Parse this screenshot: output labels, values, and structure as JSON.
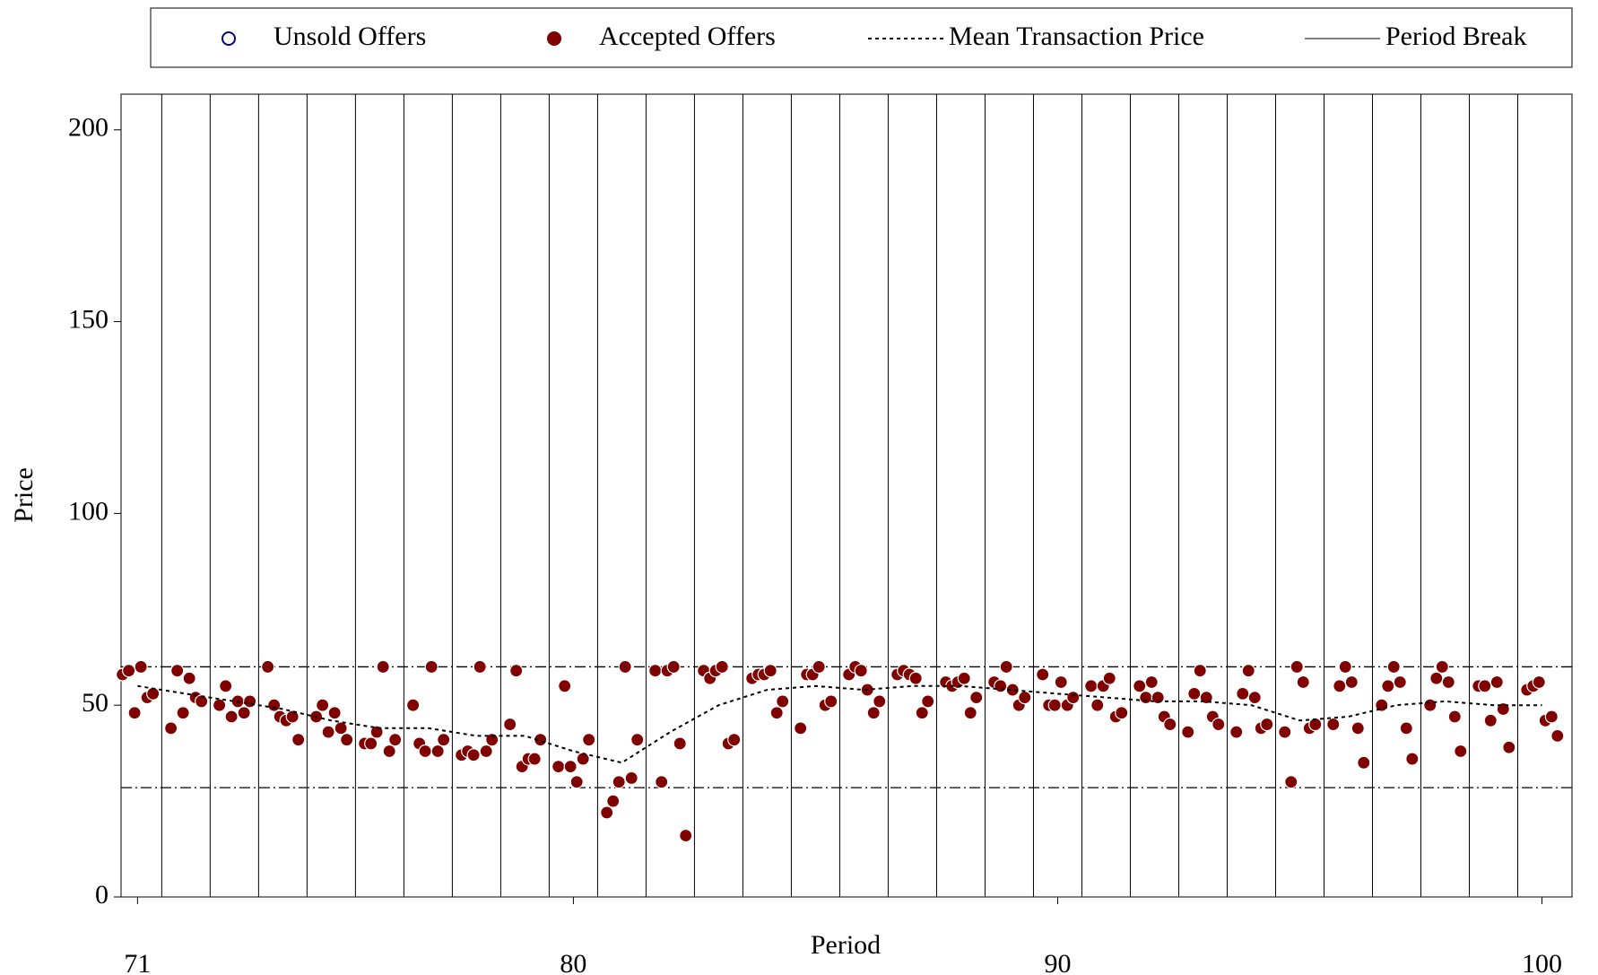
{
  "chart_data": {
    "type": "scatter",
    "xlabel": "Period",
    "ylabel": "Price",
    "xlim": [
      70.66,
      100.62
    ],
    "ylim": [
      0,
      209.3
    ],
    "xticks": [
      71,
      80,
      90,
      100
    ],
    "yticks": [
      0,
      50,
      100,
      150,
      200
    ],
    "reference_lines": [
      60,
      28.5
    ],
    "series": [
      {
        "name": "Unsold Offers",
        "type": "scatter",
        "color": "#00008b",
        "x": [],
        "values": []
      },
      {
        "name": "Accepted Offers",
        "type": "scatter",
        "color": "#800000",
        "x": [
          70.69,
          70.82,
          70.94,
          71.07,
          71.2,
          71.32,
          71.69,
          71.82,
          71.94,
          72.07,
          72.2,
          72.32,
          72.69,
          72.82,
          72.94,
          73.07,
          73.2,
          73.32,
          73.69,
          73.82,
          73.94,
          74.07,
          74.2,
          74.32,
          74.69,
          74.82,
          74.94,
          75.07,
          75.2,
          75.32,
          75.69,
          75.82,
          75.94,
          76.07,
          76.2,
          76.32,
          76.69,
          76.82,
          76.94,
          77.07,
          77.2,
          77.32,
          77.69,
          77.82,
          77.94,
          78.07,
          78.2,
          78.32,
          78.69,
          78.82,
          78.94,
          79.07,
          79.2,
          79.32,
          79.69,
          79.82,
          79.94,
          80.07,
          80.2,
          80.32,
          80.69,
          80.82,
          80.94,
          81.07,
          81.2,
          81.32,
          81.69,
          81.82,
          81.94,
          82.07,
          82.2,
          82.32,
          82.69,
          82.82,
          82.94,
          83.07,
          83.2,
          83.32,
          83.69,
          83.82,
          83.94,
          84.07,
          84.2,
          84.32,
          84.69,
          84.82,
          84.94,
          85.07,
          85.2,
          85.32,
          85.69,
          85.82,
          85.94,
          86.07,
          86.2,
          86.32,
          86.69,
          86.82,
          86.94,
          87.07,
          87.2,
          87.32,
          87.69,
          87.82,
          87.94,
          88.07,
          88.2,
          88.32,
          88.69,
          88.82,
          88.94,
          89.07,
          89.2,
          89.32,
          89.69,
          89.82,
          89.94,
          90.07,
          90.2,
          90.32,
          90.69,
          90.82,
          90.94,
          91.07,
          91.2,
          91.32,
          91.69,
          91.82,
          91.94,
          92.07,
          92.2,
          92.32,
          92.69,
          92.82,
          92.94,
          93.07,
          93.2,
          93.32,
          93.69,
          93.82,
          93.94,
          94.07,
          94.2,
          94.32,
          94.69,
          94.82,
          94.94,
          95.07,
          95.2,
          95.32,
          95.69,
          95.82,
          95.94,
          96.07,
          96.2,
          96.32,
          96.69,
          96.82,
          96.94,
          97.07,
          97.2,
          97.32,
          97.69,
          97.82,
          97.94,
          98.07,
          98.2,
          98.32,
          98.69,
          98.82,
          98.94,
          99.07,
          99.2,
          99.32,
          99.69,
          99.82,
          99.94,
          100.07,
          100.2,
          100.32
        ],
        "values": [
          58,
          59,
          48,
          60,
          52,
          53,
          44,
          59,
          48,
          57,
          52,
          51,
          50,
          55,
          47,
          51,
          48,
          51,
          60,
          50,
          47,
          46,
          47,
          41,
          47,
          50,
          43,
          48,
          44,
          41,
          40,
          40,
          43,
          60,
          38,
          41,
          50,
          40,
          38,
          60,
          38,
          41,
          37,
          38,
          37,
          60,
          38,
          41,
          45,
          59,
          34,
          36,
          36,
          41,
          34,
          55,
          34,
          30,
          36,
          41,
          22,
          25,
          30,
          60,
          31,
          41,
          59,
          30,
          59,
          60,
          40,
          16,
          59,
          57,
          59,
          60,
          40,
          41,
          57,
          58,
          58,
          59,
          48,
          51,
          44,
          58,
          58,
          60,
          50,
          51,
          58,
          60,
          59,
          54,
          48,
          51,
          58,
          59,
          58,
          57,
          48,
          51,
          56,
          55,
          56,
          57,
          48,
          52,
          56,
          55,
          60,
          54,
          50,
          52,
          58,
          50,
          50,
          56,
          50,
          52,
          55,
          50,
          55,
          57,
          47,
          48,
          55,
          52,
          56,
          52,
          47,
          45,
          43,
          53,
          59,
          52,
          47,
          45,
          43,
          53,
          59,
          52,
          44,
          45,
          43,
          30,
          60,
          56,
          44,
          45,
          45,
          55,
          60,
          56,
          44,
          35,
          50,
          55,
          60,
          56,
          44,
          36,
          50,
          57,
          60,
          56,
          47,
          38,
          55,
          55,
          46,
          56,
          49,
          39,
          54,
          55,
          56,
          46,
          47,
          42
        ]
      },
      {
        "name": "Mean Transaction Price",
        "type": "line",
        "color": "#000000",
        "x": [
          71,
          72,
          73,
          74,
          75,
          76,
          77,
          78,
          79,
          80,
          81,
          82,
          83,
          84,
          85,
          86,
          87,
          88,
          89,
          90,
          91,
          92,
          93,
          94,
          95,
          96,
          97,
          98,
          99,
          100
        ],
        "values": [
          55,
          53,
          51,
          49,
          46,
          44,
          44,
          42,
          42,
          38,
          35,
          43,
          50,
          54,
          55,
          54,
          55,
          55,
          54,
          53,
          52,
          51,
          51,
          50,
          46,
          47,
          50,
          51,
          50,
          50
        ]
      },
      {
        "name": "Period Break",
        "type": "vline",
        "color": "#000000",
        "x": [
          71.5,
          72.5,
          73.5,
          74.5,
          75.5,
          76.5,
          77.5,
          78.5,
          79.5,
          80.5,
          81.5,
          82.5,
          83.5,
          84.5,
          85.5,
          86.5,
          87.5,
          88.5,
          89.5,
          90.5,
          91.5,
          92.5,
          93.5,
          94.5,
          95.5,
          96.5,
          97.5,
          98.5,
          99.5
        ]
      }
    ]
  }
}
